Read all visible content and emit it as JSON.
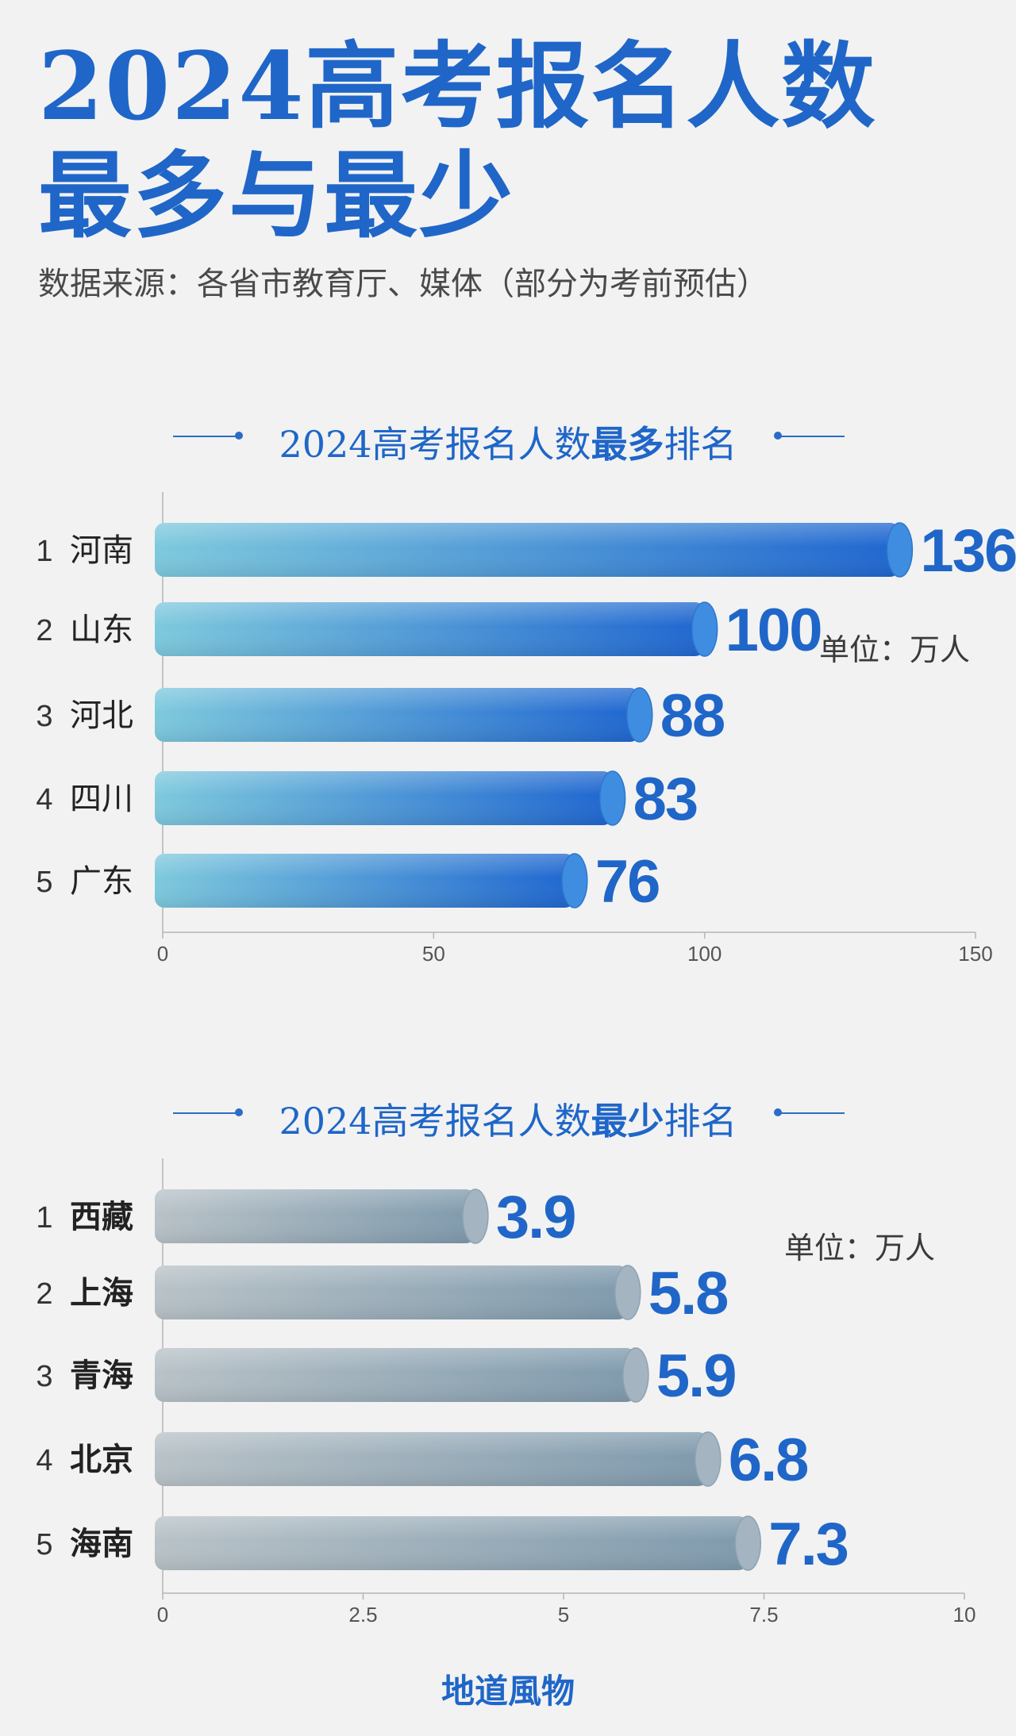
{
  "header": {
    "title_line1": "2024高考报名人数",
    "title_line2": "最多与最少",
    "source": "数据来源：各省市教育厅、媒体（部分为考前预估）"
  },
  "colors": {
    "accent": "#1f66c8",
    "most_bar_start": "#7ec9dd",
    "most_bar_end": "#1f66d0",
    "least_bar_start": "#b8c2c7",
    "least_bar_end": "#7f9aad"
  },
  "chart_data": [
    {
      "type": "bar",
      "orientation": "horizontal",
      "title_pre": "2024高考报名人数",
      "title_em": "最多",
      "title_post": "排名",
      "unit_label": "单位：万人",
      "ranks": [
        "1",
        "2",
        "3",
        "4",
        "5"
      ],
      "categories": [
        "河南",
        "山东",
        "河北",
        "四川",
        "广东"
      ],
      "values": [
        136,
        100,
        88,
        83,
        76
      ],
      "value_labels": [
        "136",
        "100",
        "88",
        "83",
        "76"
      ],
      "xlim": [
        0,
        150
      ],
      "xticks": [
        "0",
        "50",
        "100",
        "150"
      ],
      "xtick_values": [
        0,
        50,
        100,
        150
      ],
      "grid": false
    },
    {
      "type": "bar",
      "orientation": "horizontal",
      "title_pre": "2024高考报名人数",
      "title_em": "最少",
      "title_post": "排名",
      "unit_label": "单位：万人",
      "ranks": [
        "1",
        "2",
        "3",
        "4",
        "5"
      ],
      "categories": [
        "西藏",
        "上海",
        "青海",
        "北京",
        "海南"
      ],
      "values": [
        3.9,
        5.8,
        5.9,
        6.8,
        7.3
      ],
      "value_labels": [
        "3.9",
        "5.8",
        "5.9",
        "6.8",
        "7.3"
      ],
      "xlim": [
        0,
        10
      ],
      "xticks": [
        "0",
        "2.5",
        "5",
        "7.5",
        "10"
      ],
      "xtick_values": [
        0,
        2.5,
        5,
        7.5,
        10
      ],
      "grid": false
    }
  ],
  "footer": {
    "brand": "地道風物"
  }
}
